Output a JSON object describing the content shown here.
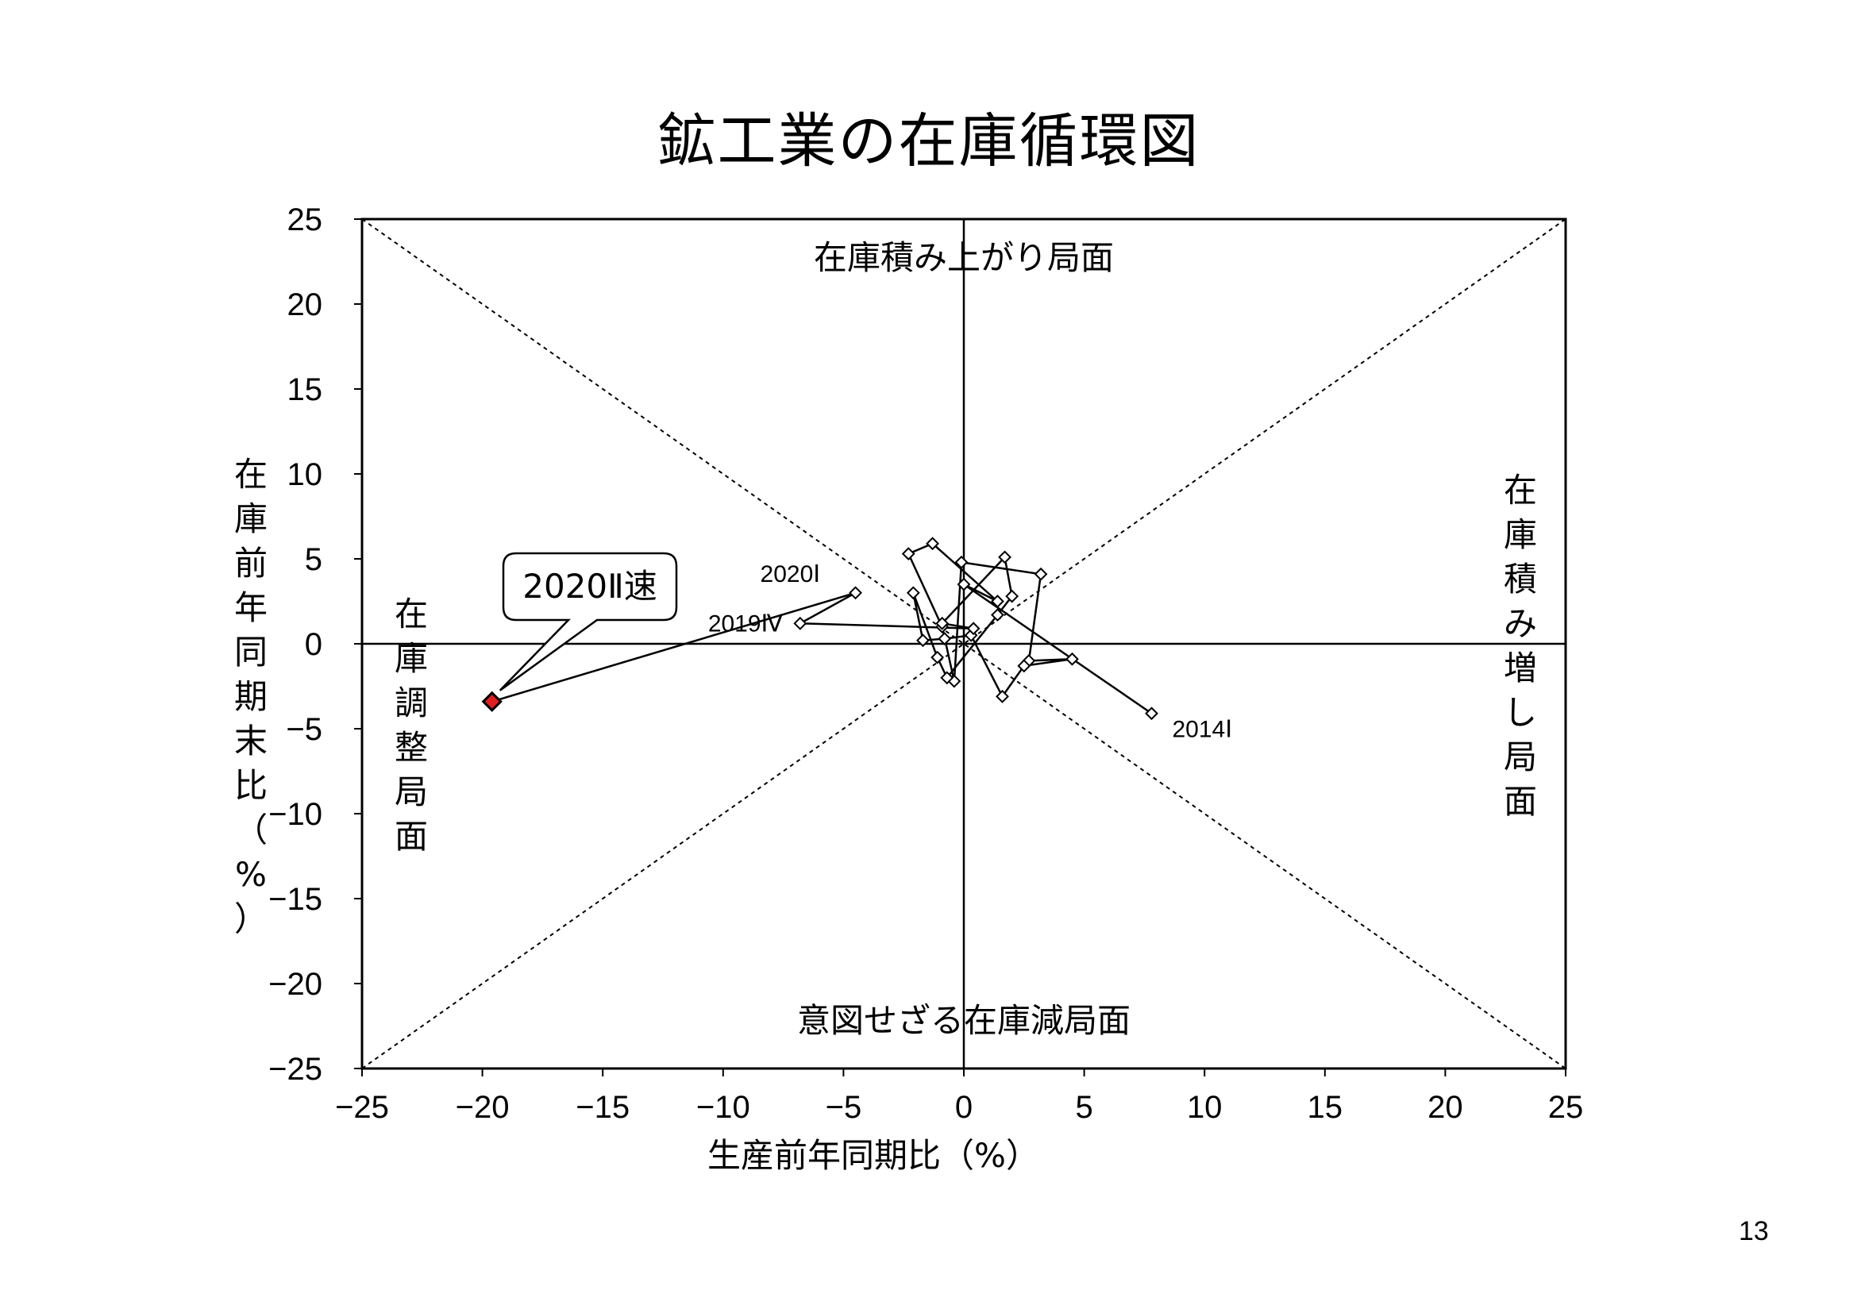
{
  "title": "鉱工業の在庫循環図",
  "page_number": "13",
  "chart_data": {
    "type": "scatter",
    "xlabel": "生産前年同期比（%）",
    "ylabel": "在庫前年同期末比（%）",
    "xlim": [
      -25,
      25
    ],
    "ylim": [
      -25,
      25
    ],
    "x_ticks": [
      "−25",
      "−20",
      "−15",
      "−10",
      "−5",
      "0",
      "5",
      "10",
      "15",
      "20",
      "25"
    ],
    "y_ticks": [
      "25",
      "20",
      "15",
      "10",
      "5",
      "0",
      "−5",
      "−10",
      "−15",
      "−20",
      "−25"
    ],
    "phases": {
      "top": "在庫積み上がり局面",
      "bottom": "意図せざる在庫減局面",
      "left": "在庫調整局面",
      "right": "在庫積み増し局面"
    },
    "series": [
      {
        "points": [
          {
            "x": 7.8,
            "y": -4.1
          },
          {
            "x": 0.0,
            "y": 3.5
          },
          {
            "x": 1.4,
            "y": 2.5
          },
          {
            "x": -1.3,
            "y": 5.9
          },
          {
            "x": -2.3,
            "y": 5.3
          },
          {
            "x": -0.9,
            "y": 1.0
          },
          {
            "x": -0.4,
            "y": -2.2
          },
          {
            "x": -0.1,
            "y": 4.8
          },
          {
            "x": 3.2,
            "y": 4.1
          },
          {
            "x": 2.7,
            "y": -1.0
          },
          {
            "x": 4.5,
            "y": -0.9
          },
          {
            "x": 2.5,
            "y": -1.3
          },
          {
            "x": 1.6,
            "y": -3.1
          },
          {
            "x": 0.3,
            "y": 0.5
          },
          {
            "x": -0.8,
            "y": 0.3
          },
          {
            "x": -1.7,
            "y": 0.2
          },
          {
            "x": -2.1,
            "y": 3.0
          },
          {
            "x": -1.1,
            "y": -0.8
          },
          {
            "x": -0.7,
            "y": -2.0
          },
          {
            "x": 1.4,
            "y": 1.7
          },
          {
            "x": 2.0,
            "y": 2.8
          },
          {
            "x": 1.7,
            "y": 5.1
          },
          {
            "x": -0.9,
            "y": 1.2
          },
          {
            "x": 0.4,
            "y": 0.9
          },
          {
            "x": -6.8,
            "y": 1.2
          },
          {
            "x": -4.5,
            "y": 3.0
          },
          {
            "x": -19.6,
            "y": -3.4
          }
        ]
      }
    ],
    "point_labels": [
      {
        "text": "2014Ⅰ",
        "index": 0
      },
      {
        "text": "2019Ⅳ",
        "index": 24
      },
      {
        "text": "2020Ⅰ",
        "index": 25
      }
    ],
    "callout": {
      "text": "2020Ⅱ速",
      "index": 26,
      "color": "#e02020"
    },
    "marker_color": "#ffffff",
    "line_color": "#000000"
  }
}
